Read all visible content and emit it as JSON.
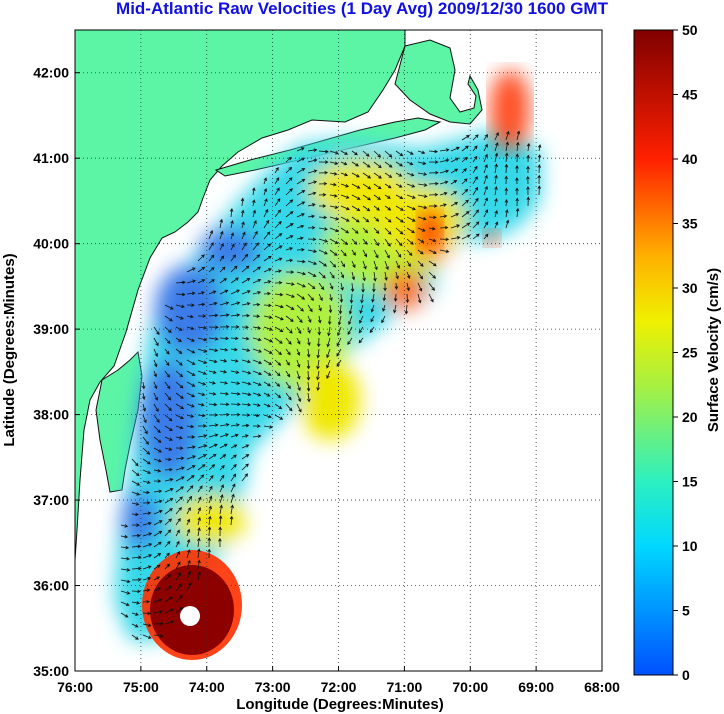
{
  "title": "Mid-Atlantic Raw Velocities (1 Day Avg) 2009/12/30 1600 GMT",
  "map": {
    "xlabel": "Longitude (Degrees:Minutes)",
    "ylabel": "Latitude (Degrees:Minutes)",
    "lon_range": [
      -76,
      -68
    ],
    "lat_range": [
      35,
      42.5
    ],
    "x_ticks": [
      {
        "value": -76,
        "label": "76:00"
      },
      {
        "value": -75,
        "label": "75:00"
      },
      {
        "value": -74,
        "label": "74:00"
      },
      {
        "value": -73,
        "label": "73:00"
      },
      {
        "value": -72,
        "label": "72:00"
      },
      {
        "value": -71,
        "label": "71:00"
      },
      {
        "value": -70,
        "label": "70:00"
      },
      {
        "value": -69,
        "label": "69:00"
      },
      {
        "value": -68,
        "label": "68:00"
      }
    ],
    "y_ticks": [
      {
        "value": 35,
        "label": "35:00"
      },
      {
        "value": 36,
        "label": "36:00"
      },
      {
        "value": 37,
        "label": "37:00"
      },
      {
        "value": 38,
        "label": "38:00"
      },
      {
        "value": 39,
        "label": "39:00"
      },
      {
        "value": 40,
        "label": "40:00"
      },
      {
        "value": 41,
        "label": "41:00"
      },
      {
        "value": 42,
        "label": "42:00"
      }
    ],
    "grid": true,
    "land_color": "#5cf5a6",
    "colors": {
      "slow": "#2a6cf0",
      "mid": "#00e0ff",
      "fast": "#f5f000",
      "max": "#8c0000"
    }
  },
  "colorbar": {
    "label": "Surface Velocity (cm/s)",
    "min": 0,
    "max": 50,
    "ticks": [
      {
        "value": 0,
        "label": "0"
      },
      {
        "value": 5,
        "label": "5"
      },
      {
        "value": 10,
        "label": "10"
      },
      {
        "value": 15,
        "label": "15"
      },
      {
        "value": 20,
        "label": "20"
      },
      {
        "value": 25,
        "label": "25"
      },
      {
        "value": 30,
        "label": "30"
      },
      {
        "value": 35,
        "label": "35"
      },
      {
        "value": 40,
        "label": "40"
      },
      {
        "value": 45,
        "label": "45"
      },
      {
        "value": 50,
        "label": "50"
      }
    ]
  }
}
